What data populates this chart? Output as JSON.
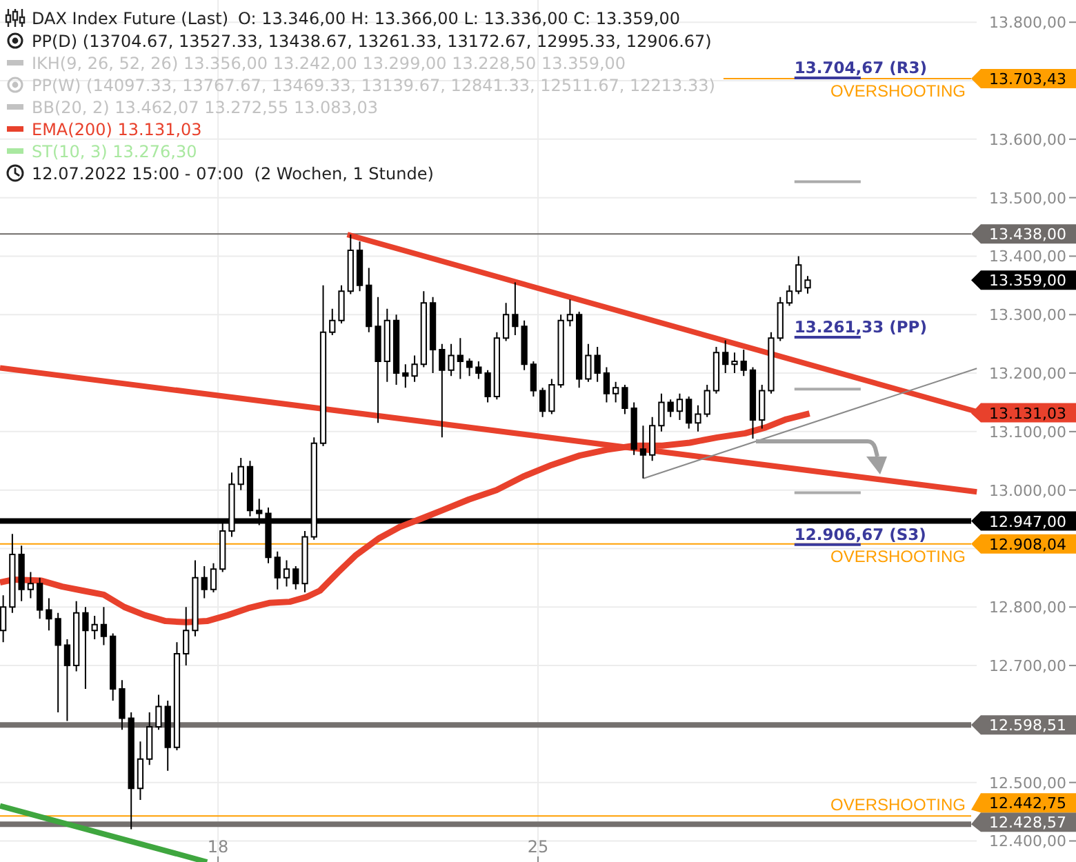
{
  "chart_data": {
    "type": "candlestick",
    "title": "DAX Index Future (Last)",
    "subtitle": "O: 13.346,00  H: 13.366,00  L: 13.336,00  C: 13.359,00",
    "color": "#000000",
    "x": [
      13.3,
      13.5,
      13.7,
      13.9,
      14.1,
      14.3,
      14.5,
      14.7,
      14.9,
      15.1,
      15.3,
      15.5,
      15.7,
      15.9,
      16.1,
      16.3,
      16.5,
      16.7,
      16.9,
      17.1,
      17.3,
      17.5,
      17.7,
      17.9,
      18.1,
      18.3,
      18.5,
      18.7,
      18.9,
      19.1,
      19.3,
      19.5,
      19.7,
      19.9,
      20.1,
      20.3,
      20.5,
      20.7,
      20.9,
      21.1,
      21.3,
      21.5,
      21.7,
      21.9,
      22.1,
      22.3,
      22.5,
      22.7,
      22.9,
      23.1,
      23.3,
      23.5,
      23.7,
      23.9,
      24.1,
      24.3,
      24.5,
      24.7,
      24.9,
      25.1,
      25.3,
      25.5,
      25.7,
      25.9,
      26.1,
      26.3,
      26.5,
      26.7,
      26.9,
      27.1,
      27.3,
      27.5,
      27.7,
      27.9,
      28.1,
      28.3,
      28.5,
      28.7,
      28.9,
      29.1,
      29.3,
      29.5,
      29.7,
      29.9,
      30.1,
      30.3,
      30.5,
      30.7,
      30.9
    ],
    "ohlc": [
      [
        12760,
        12820,
        12740,
        12800
      ],
      [
        12800,
        12925,
        12790,
        12890
      ],
      [
        12890,
        12905,
        12810,
        12830
      ],
      [
        12830,
        12860,
        12815,
        12840
      ],
      [
        12840,
        12850,
        12780,
        12795
      ],
      [
        12795,
        12815,
        12760,
        12780
      ],
      [
        12780,
        12790,
        12620,
        12735
      ],
      [
        12735,
        12745,
        12605,
        12700
      ],
      [
        12700,
        12810,
        12690,
        12790
      ],
      [
        12790,
        12800,
        12660,
        12760
      ],
      [
        12760,
        12785,
        12745,
        12770
      ],
      [
        12770,
        12800,
        12735,
        12750
      ],
      [
        12750,
        12755,
        12640,
        12660
      ],
      [
        12660,
        12675,
        12590,
        12610
      ],
      [
        12610,
        12620,
        12420,
        12490
      ],
      [
        12490,
        12570,
        12470,
        12540
      ],
      [
        12540,
        12620,
        12530,
        12595
      ],
      [
        12595,
        12650,
        12590,
        12630
      ],
      [
        12630,
        12640,
        12520,
        12560
      ],
      [
        12560,
        12740,
        12555,
        12720
      ],
      [
        12720,
        12800,
        12700,
        12760
      ],
      [
        12760,
        12880,
        12750,
        12850
      ],
      [
        12850,
        12870,
        12815,
        12830
      ],
      [
        12830,
        12875,
        12825,
        12865
      ],
      [
        12865,
        12950,
        12860,
        12930
      ],
      [
        12930,
        13030,
        12920,
        13010
      ],
      [
        13010,
        13055,
        13000,
        13040
      ],
      [
        13040,
        13050,
        12955,
        12965
      ],
      [
        12965,
        12985,
        12940,
        12960
      ],
      [
        12960,
        12970,
        12875,
        12885
      ],
      [
        12885,
        12895,
        12830,
        12850
      ],
      [
        12850,
        12880,
        12835,
        12865
      ],
      [
        12865,
        12870,
        12830,
        12840
      ],
      [
        12840,
        12930,
        12825,
        12920
      ],
      [
        12920,
        13090,
        12915,
        13080
      ],
      [
        13080,
        13350,
        13075,
        13270
      ],
      [
        13270,
        13310,
        13265,
        13290
      ],
      [
        13290,
        13350,
        13285,
        13340
      ],
      [
        13340,
        13437,
        13335,
        13410
      ],
      [
        13410,
        13425,
        13340,
        13350
      ],
      [
        13350,
        13380,
        13270,
        13280
      ],
      [
        13280,
        13330,
        13115,
        13220
      ],
      [
        13220,
        13310,
        13185,
        13290
      ],
      [
        13290,
        13300,
        13180,
        13200
      ],
      [
        13200,
        13215,
        13175,
        13195
      ],
      [
        13195,
        13230,
        13185,
        13215
      ],
      [
        13215,
        13340,
        13210,
        13320
      ],
      [
        13320,
        13330,
        13200,
        13240
      ],
      [
        13240,
        13250,
        13090,
        13205
      ],
      [
        13205,
        13250,
        13195,
        13230
      ],
      [
        13230,
        13260,
        13190,
        13220
      ],
      [
        13220,
        13225,
        13195,
        13210
      ],
      [
        13210,
        13220,
        13190,
        13200
      ],
      [
        13200,
        13205,
        13150,
        13160
      ],
      [
        13160,
        13270,
        13155,
        13260
      ],
      [
        13260,
        13320,
        13255,
        13300
      ],
      [
        13300,
        13355,
        13265,
        13280
      ],
      [
        13280,
        13290,
        13205,
        13215
      ],
      [
        13215,
        13220,
        13160,
        13170
      ],
      [
        13170,
        13175,
        13125,
        13135
      ],
      [
        13135,
        13190,
        13130,
        13180
      ],
      [
        13180,
        13300,
        13175,
        13290
      ],
      [
        13290,
        13326,
        13280,
        13300
      ],
      [
        13300,
        13305,
        13175,
        13190
      ],
      [
        13190,
        13250,
        13185,
        13230
      ],
      [
        13230,
        13245,
        13185,
        13200
      ],
      [
        13200,
        13210,
        13150,
        13165
      ],
      [
        13165,
        13185,
        13150,
        13175
      ],
      [
        13175,
        13180,
        13130,
        13140
      ],
      [
        13140,
        13150,
        13060,
        13070
      ],
      [
        13070,
        13110,
        13020,
        13060
      ],
      [
        13060,
        13125,
        13050,
        13110
      ],
      [
        13110,
        13165,
        13100,
        13150
      ],
      [
        13150,
        13155,
        13125,
        13135
      ],
      [
        13135,
        13165,
        13120,
        13155
      ],
      [
        13155,
        13160,
        13105,
        13115
      ],
      [
        13115,
        13145,
        13100,
        13130
      ],
      [
        13130,
        13180,
        13125,
        13170
      ],
      [
        13170,
        13245,
        13165,
        13235
      ],
      [
        13235,
        13256,
        13200,
        13215
      ],
      [
        13215,
        13235,
        13200,
        13220
      ],
      [
        13220,
        13240,
        13195,
        13205
      ],
      [
        13205,
        13210,
        13088,
        13120
      ],
      [
        13120,
        13180,
        13105,
        13170
      ],
      [
        13170,
        13270,
        13165,
        13260
      ],
      [
        13260,
        13330,
        13255,
        13320
      ],
      [
        13320,
        13350,
        13315,
        13340
      ],
      [
        13340,
        13400,
        13335,
        13385
      ],
      [
        13346,
        13366,
        13336,
        13359
      ]
    ],
    "series": [
      {
        "name": "EMA(200) 13.131,03",
        "type": "line",
        "color": "#e8412c",
        "x": [
          13.23,
          13.53,
          14.14,
          14.59,
          15.04,
          15.5,
          15.95,
          16.4,
          16.85,
          17.31,
          17.76,
          18.21,
          18.66,
          19.12,
          19.57,
          19.93,
          20.23,
          20.62,
          21.02,
          21.53,
          21.98,
          22.44,
          22.89,
          23.49,
          24.09,
          24.7,
          25.3,
          25.91,
          26.51,
          27.11,
          27.72,
          28.32,
          28.92,
          29.53,
          29.98,
          30.43,
          30.94
        ],
        "values": [
          12842,
          12847,
          12845,
          12835,
          12828,
          12821,
          12800,
          12786,
          12776,
          12774,
          12776,
          12786,
          12798,
          12807,
          12809,
          12817,
          12828,
          12859,
          12889,
          12918,
          12937,
          12951,
          12965,
          12984,
          13000,
          13024,
          13043,
          13059,
          13069,
          13076,
          13076,
          13081,
          13090,
          13097,
          13107,
          13121,
          13131.03
        ]
      },
      {
        "type": "line",
        "color": "#e8412c",
        "x": [
          20.83,
          34.6
        ],
        "values": [
          13437,
          13134
        ]
      },
      {
        "type": "line",
        "color": "#e8412c",
        "x": [
          13.23,
          34.6
        ],
        "values": [
          13209,
          12997
        ]
      },
      {
        "type": "line",
        "color": "#8a8a8a",
        "x": [
          27.31,
          34.6
        ],
        "values": [
          13020,
          13208
        ]
      },
      {
        "type": "line",
        "color": "#3fa63f",
        "x": [
          13.23,
          17.76
        ],
        "values": [
          12460,
          12364
        ]
      },
      {
        "type": "line",
        "color": "#3a3a9c",
        "x": [
          30.61,
          32.06
        ],
        "values": [
          13704.67,
          13704.67
        ],
        "value_labels": [
          "13.704,67 (R3)",
          null
        ]
      },
      {
        "type": "line",
        "color": "#ababab",
        "x": [
          30.61,
          32.06
        ],
        "values": [
          13527.33,
          13527.33
        ]
      },
      {
        "type": "line",
        "color": "#3a3a9c",
        "x": [
          30.61,
          32.06
        ],
        "values": [
          13261.33,
          13261.33
        ],
        "value_labels": [
          "13.261,33 (PP)",
          null
        ]
      },
      {
        "type": "line",
        "color": "#ababab",
        "x": [
          30.61,
          32.06
        ],
        "values": [
          13172.67,
          13172.67
        ]
      },
      {
        "type": "line",
        "color": "#ababab",
        "x": [
          30.61,
          32.06
        ],
        "values": [
          12995.33,
          12995.33
        ]
      },
      {
        "type": "line",
        "color": "#3a3a9c",
        "x": [
          30.61,
          32.06
        ],
        "values": [
          12906.67,
          12906.67
        ],
        "value_labels": [
          "12.906,67 (S3)",
          null
        ]
      }
    ],
    "xlim": [
      13.23,
      36.77
    ],
    "xticks": [
      18,
      25
    ],
    "ylim": [
      12364,
      13838
    ],
    "yticks": [
      {
        "value": 12400,
        "label": "12.400,00"
      },
      {
        "value": 12500,
        "label": "12.500,00"
      },
      {
        "value": 12600,
        "label": null
      },
      {
        "value": 12700,
        "label": "12.700,00"
      },
      {
        "value": 12800,
        "label": "12.800,00"
      },
      {
        "value": 12900,
        "label": null
      },
      {
        "value": 13000,
        "label": "13.000,00"
      },
      {
        "value": 13100,
        "label": "13.100,00"
      },
      {
        "value": 13200,
        "label": "13.200,00"
      },
      {
        "value": 13300,
        "label": "13.300,00"
      },
      {
        "value": 13400,
        "label": "13.400,00"
      },
      {
        "value": 13500,
        "label": "13.500,00"
      },
      {
        "value": 13600,
        "label": "13.600,00"
      },
      {
        "value": 13700,
        "label": null
      },
      {
        "value": 13800,
        "label": "13.800,00"
      }
    ],
    "grid": true,
    "legend": "top left",
    "ref_lines": [
      {
        "axis": "y",
        "value": 13703.43,
        "color": "#ff9f00"
      },
      {
        "axis": "y",
        "value": 13438,
        "color": "#6f6b69"
      },
      {
        "axis": "y",
        "value": 12947,
        "color": "#000000"
      },
      {
        "axis": "y",
        "value": 12908.04,
        "color": "#ff9f00"
      },
      {
        "axis": "y",
        "value": 12598.51,
        "color": "#74706e"
      },
      {
        "axis": "y",
        "value": 12442.75,
        "color": "#ff9f00"
      },
      {
        "axis": "y",
        "value": 12428.57,
        "color": "#74706e"
      }
    ],
    "annotations": [
      "PP(D) (13704.67, 13527.33, 13438.67, 13261.33, 13172.67, 12995.33, 12906.67)",
      "IKH(9, 26, 52, 26) 13.356,00 13.242,00 13.299,00 13.228,50 13.359,00",
      "PP(W) (14097.33, 13767.67, 13469.33, 13139.67, 12841.33, 12511.67, 12213.33)",
      "BB(20, 2) 13.462,07 13.272,55 13.083,03",
      "ST(10, 3) 13.276,30",
      "12.07.2022 15:00 - 07:00  (2 Wochen, 1 Stunde)",
      "13.359,00",
      "13.131,03",
      "13.703,43",
      "13.438,00",
      "12.947,00",
      "12.908,04",
      "12.598,51",
      "12.442,75",
      "12.428,57",
      {
        "text": "OVERSHOOTING",
        "y": 13703.43
      },
      {
        "text": "OVERSHOOTING",
        "y": 12908.04
      },
      {
        "text": "OVERSHOOTING",
        "y": 12442.75
      }
    ]
  }
}
